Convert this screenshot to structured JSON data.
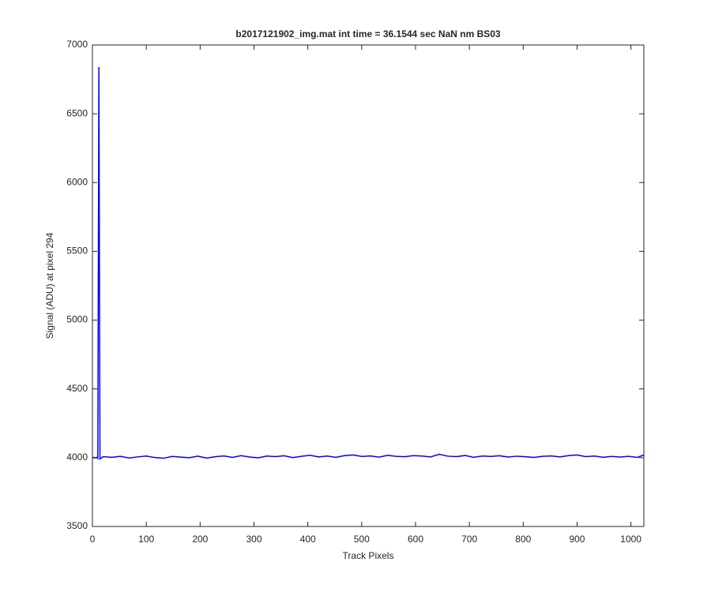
{
  "chart_data": {
    "type": "line",
    "title": "b2017121902_img.mat int time = 36.1544 sec  NaN nm BS03",
    "x_label": "Track Pixels",
    "y_label": "Signal (ADU) at pixel 294",
    "xlim": [
      0,
      1024
    ],
    "xticks": [
      0,
      100,
      200,
      300,
      400,
      500,
      600,
      700,
      800,
      900,
      1000
    ],
    "ylim": [
      3500,
      7000
    ],
    "yticks": [
      3500,
      4000,
      4500,
      5000,
      5500,
      6000,
      6500,
      7000
    ],
    "grid": false,
    "series": [
      {
        "color": "#0000ff",
        "x": [
          1,
          4,
          8,
          10,
          12,
          14,
          20,
          36,
          52,
          68,
          84,
          100,
          116,
          132,
          148,
          164,
          180,
          196,
          212,
          228,
          244,
          260,
          276,
          292,
          308,
          324,
          340,
          356,
          372,
          388,
          404,
          420,
          436,
          452,
          468,
          484,
          500,
          516,
          532,
          548,
          564,
          580,
          596,
          612,
          628,
          644,
          660,
          676,
          692,
          708,
          724,
          740,
          756,
          772,
          788,
          804,
          820,
          836,
          852,
          868,
          884,
          900,
          916,
          932,
          948,
          964,
          980,
          996,
          1012,
          1024
        ],
        "values": [
          4005,
          3998,
          4002,
          3995,
          6840,
          3990,
          4008,
          4003,
          4010,
          3998,
          4006,
          4012,
          4001,
          3996,
          4009,
          4004,
          4000,
          4011,
          3997,
          4007,
          4013,
          4002,
          4015,
          4005,
          3999,
          4012,
          4008,
          4014,
          4001,
          4010,
          4018,
          4006,
          4012,
          4003,
          4015,
          4020,
          4009,
          4013,
          4004,
          4017,
          4010,
          4007,
          4015,
          4012,
          4006,
          4025,
          4011,
          4008,
          4016,
          4003,
          4012,
          4009,
          4014,
          4005,
          4011,
          4007,
          4002,
          4010,
          4013,
          4006,
          4015,
          4020,
          4008,
          4012,
          4003,
          4009,
          4005,
          4010,
          4002,
          4020
        ]
      }
    ]
  }
}
